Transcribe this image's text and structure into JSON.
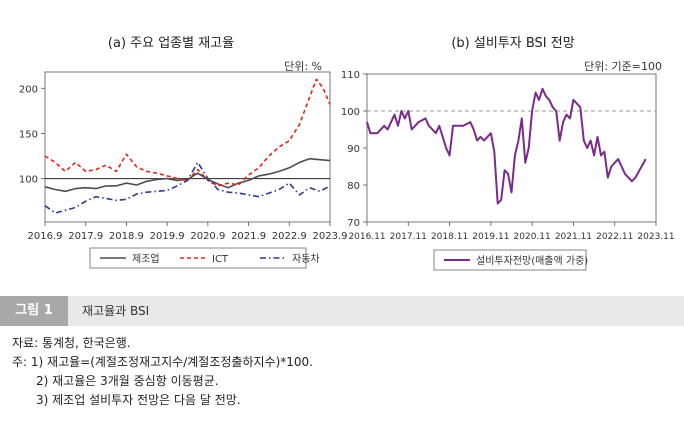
{
  "chart_data": [
    {
      "type": "line",
      "title": "(a) 주요 업종별 재고율",
      "unit": "단위: %",
      "x_ticks": [
        "2016.9",
        "2017.9",
        "2018.9",
        "2019.9",
        "2020.9",
        "2021.9",
        "2022.9",
        "2023.9"
      ],
      "x_range": [
        "2016.9",
        "2023.9"
      ],
      "y_ticks": [
        100,
        150,
        200
      ],
      "ylim": [
        52,
        218
      ],
      "reference_line": 100,
      "legend_position": "bottom",
      "series": [
        {
          "name": "제조업",
          "color": "#4d4d4d",
          "dash": "solid",
          "points": [
            [
              "2016.9",
              91
            ],
            [
              "2016.12",
              88
            ],
            [
              "2017.3",
              86
            ],
            [
              "2017.6",
              89
            ],
            [
              "2017.9",
              90
            ],
            [
              "2017.12",
              89
            ],
            [
              "2018.3",
              92
            ],
            [
              "2018.6",
              92
            ],
            [
              "2018.9",
              95
            ],
            [
              "2018.12",
              93
            ],
            [
              "2019.3",
              97
            ],
            [
              "2019.6",
              99
            ],
            [
              "2019.9",
              100
            ],
            [
              "2019.12",
              98
            ],
            [
              "2020.3",
              99
            ],
            [
              "2020.6",
              106
            ],
            [
              "2020.9",
              99
            ],
            [
              "2020.12",
              94
            ],
            [
              "2021.3",
              90
            ],
            [
              "2021.6",
              95
            ],
            [
              "2021.9",
              98
            ],
            [
              "2021.12",
              103
            ],
            [
              "2022.3",
              105
            ],
            [
              "2022.6",
              108
            ],
            [
              "2022.9",
              112
            ],
            [
              "2022.12",
              118
            ],
            [
              "2023.3",
              122
            ],
            [
              "2023.6",
              121
            ],
            [
              "2023.9",
              120
            ]
          ]
        },
        {
          "name": "ICT",
          "color": "#e2231a",
          "dash": "dashed",
          "points": [
            [
              "2016.9",
              125
            ],
            [
              "2016.12",
              118
            ],
            [
              "2017.3",
              108
            ],
            [
              "2017.6",
              118
            ],
            [
              "2017.9",
              108
            ],
            [
              "2017.12",
              110
            ],
            [
              "2018.3",
              115
            ],
            [
              "2018.6",
              108
            ],
            [
              "2018.9",
              127
            ],
            [
              "2018.12",
              113
            ],
            [
              "2019.3",
              108
            ],
            [
              "2019.6",
              106
            ],
            [
              "2019.9",
              103
            ],
            [
              "2019.12",
              100
            ],
            [
              "2020.3",
              98
            ],
            [
              "2020.6",
              110
            ],
            [
              "2020.9",
              98
            ],
            [
              "2020.12",
              92
            ],
            [
              "2021.3",
              95
            ],
            [
              "2021.6",
              93
            ],
            [
              "2021.9",
              104
            ],
            [
              "2021.12",
              112
            ],
            [
              "2022.3",
              125
            ],
            [
              "2022.6",
              135
            ],
            [
              "2022.9",
              142
            ],
            [
              "2022.12",
              160
            ],
            [
              "2023.3",
              190
            ],
            [
              "2023.5",
              210
            ],
            [
              "2023.7",
              200
            ],
            [
              "2023.9",
              182
            ]
          ]
        },
        {
          "name": "자동차",
          "color": "#2b3b8f",
          "dash": "dashdot",
          "points": [
            [
              "2016.9",
              70
            ],
            [
              "2016.12",
              62
            ],
            [
              "2017.3",
              65
            ],
            [
              "2017.6",
              68
            ],
            [
              "2017.9",
              75
            ],
            [
              "2017.12",
              80
            ],
            [
              "2018.3",
              78
            ],
            [
              "2018.6",
              76
            ],
            [
              "2018.9",
              77
            ],
            [
              "2018.12",
              83
            ],
            [
              "2019.3",
              85
            ],
            [
              "2019.6",
              86
            ],
            [
              "2019.9",
              87
            ],
            [
              "2019.12",
              92
            ],
            [
              "2020.3",
              98
            ],
            [
              "2020.6",
              118
            ],
            [
              "2020.9",
              100
            ],
            [
              "2020.12",
              88
            ],
            [
              "2021.3",
              85
            ],
            [
              "2021.6",
              84
            ],
            [
              "2021.9",
              82
            ],
            [
              "2021.12",
              80
            ],
            [
              "2022.3",
              84
            ],
            [
              "2022.6",
              88
            ],
            [
              "2022.9",
              95
            ],
            [
              "2022.12",
              82
            ],
            [
              "2023.3",
              90
            ],
            [
              "2023.6",
              86
            ],
            [
              "2023.9",
              92
            ]
          ]
        }
      ]
    },
    {
      "type": "line",
      "title": "(b) 설비투자 BSI 전망",
      "unit": "단위: 기준=100",
      "x_ticks": [
        "2016.11",
        "2017.11",
        "2018.11",
        "2019.11",
        "2020.11",
        "2021.11",
        "2022.11",
        "2023.11"
      ],
      "x_range": [
        "2016.11",
        "2023.11"
      ],
      "y_ticks": [
        70,
        80,
        90,
        100,
        110
      ],
      "ylim": [
        70,
        110
      ],
      "reference_line": 100,
      "legend_position": "bottom",
      "series": [
        {
          "name": "설비투자전망(매출액 가중)",
          "color": "#7a2b8c",
          "dash": "solid",
          "points": [
            [
              "2016.11",
              97
            ],
            [
              "2016.12",
              94
            ],
            [
              "2017.2",
              94
            ],
            [
              "2017.4",
              96
            ],
            [
              "2017.5",
              95
            ],
            [
              "2017.7",
              99
            ],
            [
              "2017.8",
              96
            ],
            [
              "2017.9",
              100
            ],
            [
              "2017.10",
              98
            ],
            [
              "2017.11",
              100
            ],
            [
              "2017.12",
              95
            ],
            [
              "2018.2",
              97
            ],
            [
              "2018.4",
              98
            ],
            [
              "2018.5",
              96
            ],
            [
              "2018.6",
              95
            ],
            [
              "2018.7",
              94
            ],
            [
              "2018.8",
              96
            ],
            [
              "2018.10",
              90
            ],
            [
              "2018.11",
              88
            ],
            [
              "2018.12",
              96
            ],
            [
              "2019.3",
              96
            ],
            [
              "2019.5",
              97
            ],
            [
              "2019.6",
              95
            ],
            [
              "2019.7",
              92
            ],
            [
              "2019.8",
              93
            ],
            [
              "2019.9",
              92
            ],
            [
              "2019.10",
              93
            ],
            [
              "2019.11",
              94
            ],
            [
              "2019.12",
              89
            ],
            [
              "2020.1",
              75
            ],
            [
              "2020.2",
              76
            ],
            [
              "2020.3",
              84
            ],
            [
              "2020.4",
              83
            ],
            [
              "2020.5",
              78
            ],
            [
              "2020.6",
              88
            ],
            [
              "2020.7",
              92
            ],
            [
              "2020.8",
              98
            ],
            [
              "2020.9",
              86
            ],
            [
              "2020.10",
              90
            ],
            [
              "2020.11",
              100
            ],
            [
              "2020.12",
              105
            ],
            [
              "2021.1",
              103
            ],
            [
              "2021.2",
              106
            ],
            [
              "2021.3",
              104
            ],
            [
              "2021.4",
              103
            ],
            [
              "2021.5",
              101
            ],
            [
              "2021.6",
              100
            ],
            [
              "2021.7",
              92
            ],
            [
              "2021.8",
              97
            ],
            [
              "2021.9",
              99
            ],
            [
              "2021.10",
              98
            ],
            [
              "2021.11",
              103
            ],
            [
              "2021.12",
              102
            ],
            [
              "2022.1",
              101
            ],
            [
              "2022.2",
              92
            ],
            [
              "2022.3",
              90
            ],
            [
              "2022.4",
              92
            ],
            [
              "2022.5",
              88
            ],
            [
              "2022.6",
              93
            ],
            [
              "2022.7",
              88
            ],
            [
              "2022.8",
              89
            ],
            [
              "2022.9",
              82
            ],
            [
              "2022.10",
              85
            ],
            [
              "2022.11",
              86
            ],
            [
              "2022.12",
              87
            ],
            [
              "2023.2",
              83
            ],
            [
              "2023.4",
              81
            ],
            [
              "2023.5",
              82
            ],
            [
              "2023.8",
              87
            ]
          ]
        }
      ]
    }
  ],
  "caption": {
    "tag": "그림 1",
    "text": "재고율과 BSI"
  },
  "notes": [
    "자료: 통계청, 한국은행.",
    "주: 1) 재고율=(계절조정재고지수/계절조정출하지수)*100.",
    "2) 재고율은 3개월 중심항 이동평균.",
    "3) 제조업 설비투자 전망은 다음 달 전망."
  ]
}
